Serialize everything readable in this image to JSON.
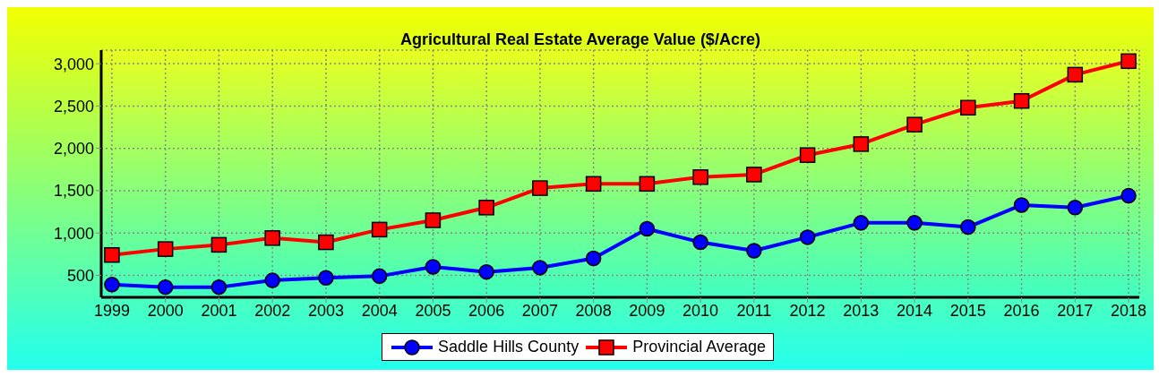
{
  "chart_data": {
    "type": "line",
    "title": "Agricultural Real Estate Average Value ($/Acre)",
    "categories": [
      "1999",
      "2000",
      "2001",
      "2002",
      "2003",
      "2004",
      "2005",
      "2006",
      "2007",
      "2008",
      "2009",
      "2010",
      "2011",
      "2012",
      "2013",
      "2014",
      "2015",
      "2016",
      "2017",
      "2018"
    ],
    "series": [
      {
        "name": "Saddle Hills County",
        "color": "#0000ff",
        "marker": "circle",
        "values": [
          390,
          360,
          360,
          440,
          470,
          490,
          600,
          540,
          590,
          700,
          1050,
          890,
          790,
          950,
          1120,
          1120,
          1070,
          1330,
          1300,
          1440
        ]
      },
      {
        "name": "Provincial Average",
        "color": "#ff0000",
        "marker": "square",
        "values": [
          740,
          810,
          860,
          940,
          890,
          1040,
          1150,
          1300,
          1530,
          1580,
          1580,
          1660,
          1690,
          1920,
          2050,
          2280,
          2480,
          2560,
          2870,
          3030
        ]
      }
    ],
    "ylim": [
      240,
      3160
    ],
    "yticks": [
      {
        "value": 500,
        "label": "500"
      },
      {
        "value": 1000,
        "label": "1,000"
      },
      {
        "value": 1500,
        "label": "1,500"
      },
      {
        "value": 2000,
        "label": "2,000"
      },
      {
        "value": 2500,
        "label": "2,500"
      },
      {
        "value": 3000,
        "label": "3,000"
      }
    ],
    "grid": true,
    "legend": "bottom",
    "line_style": "solid"
  }
}
